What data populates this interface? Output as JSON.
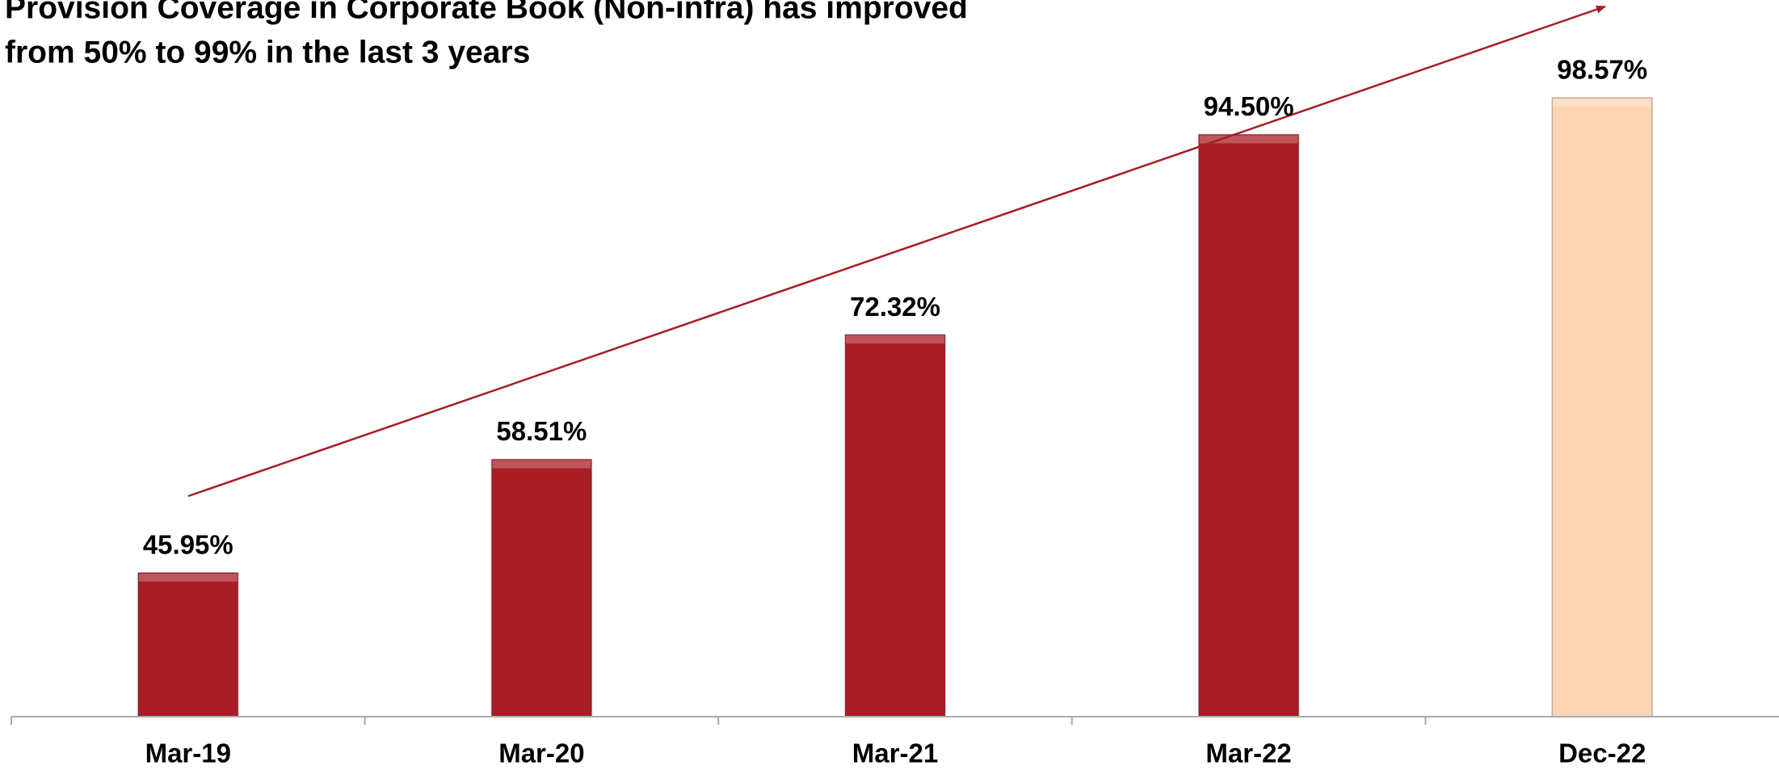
{
  "chart_data": {
    "type": "bar",
    "title": [
      "Provision Coverage in Corporate Book (Non-infra) has improved",
      "from 50% to 99% in the last 3 years"
    ],
    "categories": [
      "Mar-19",
      "Mar-20",
      "Mar-21",
      "Mar-22",
      "Dec-22"
    ],
    "values": [
      45.95,
      58.51,
      72.32,
      94.5,
      98.57
    ],
    "value_labels": [
      "45.95%",
      "58.51%",
      "72.32%",
      "94.50%",
      "98.57%"
    ],
    "colors": [
      "#a91d25",
      "#a91d25",
      "#a91d25",
      "#a91d25",
      "#fdd5b4"
    ],
    "ylim": [
      30,
      100
    ]
  }
}
